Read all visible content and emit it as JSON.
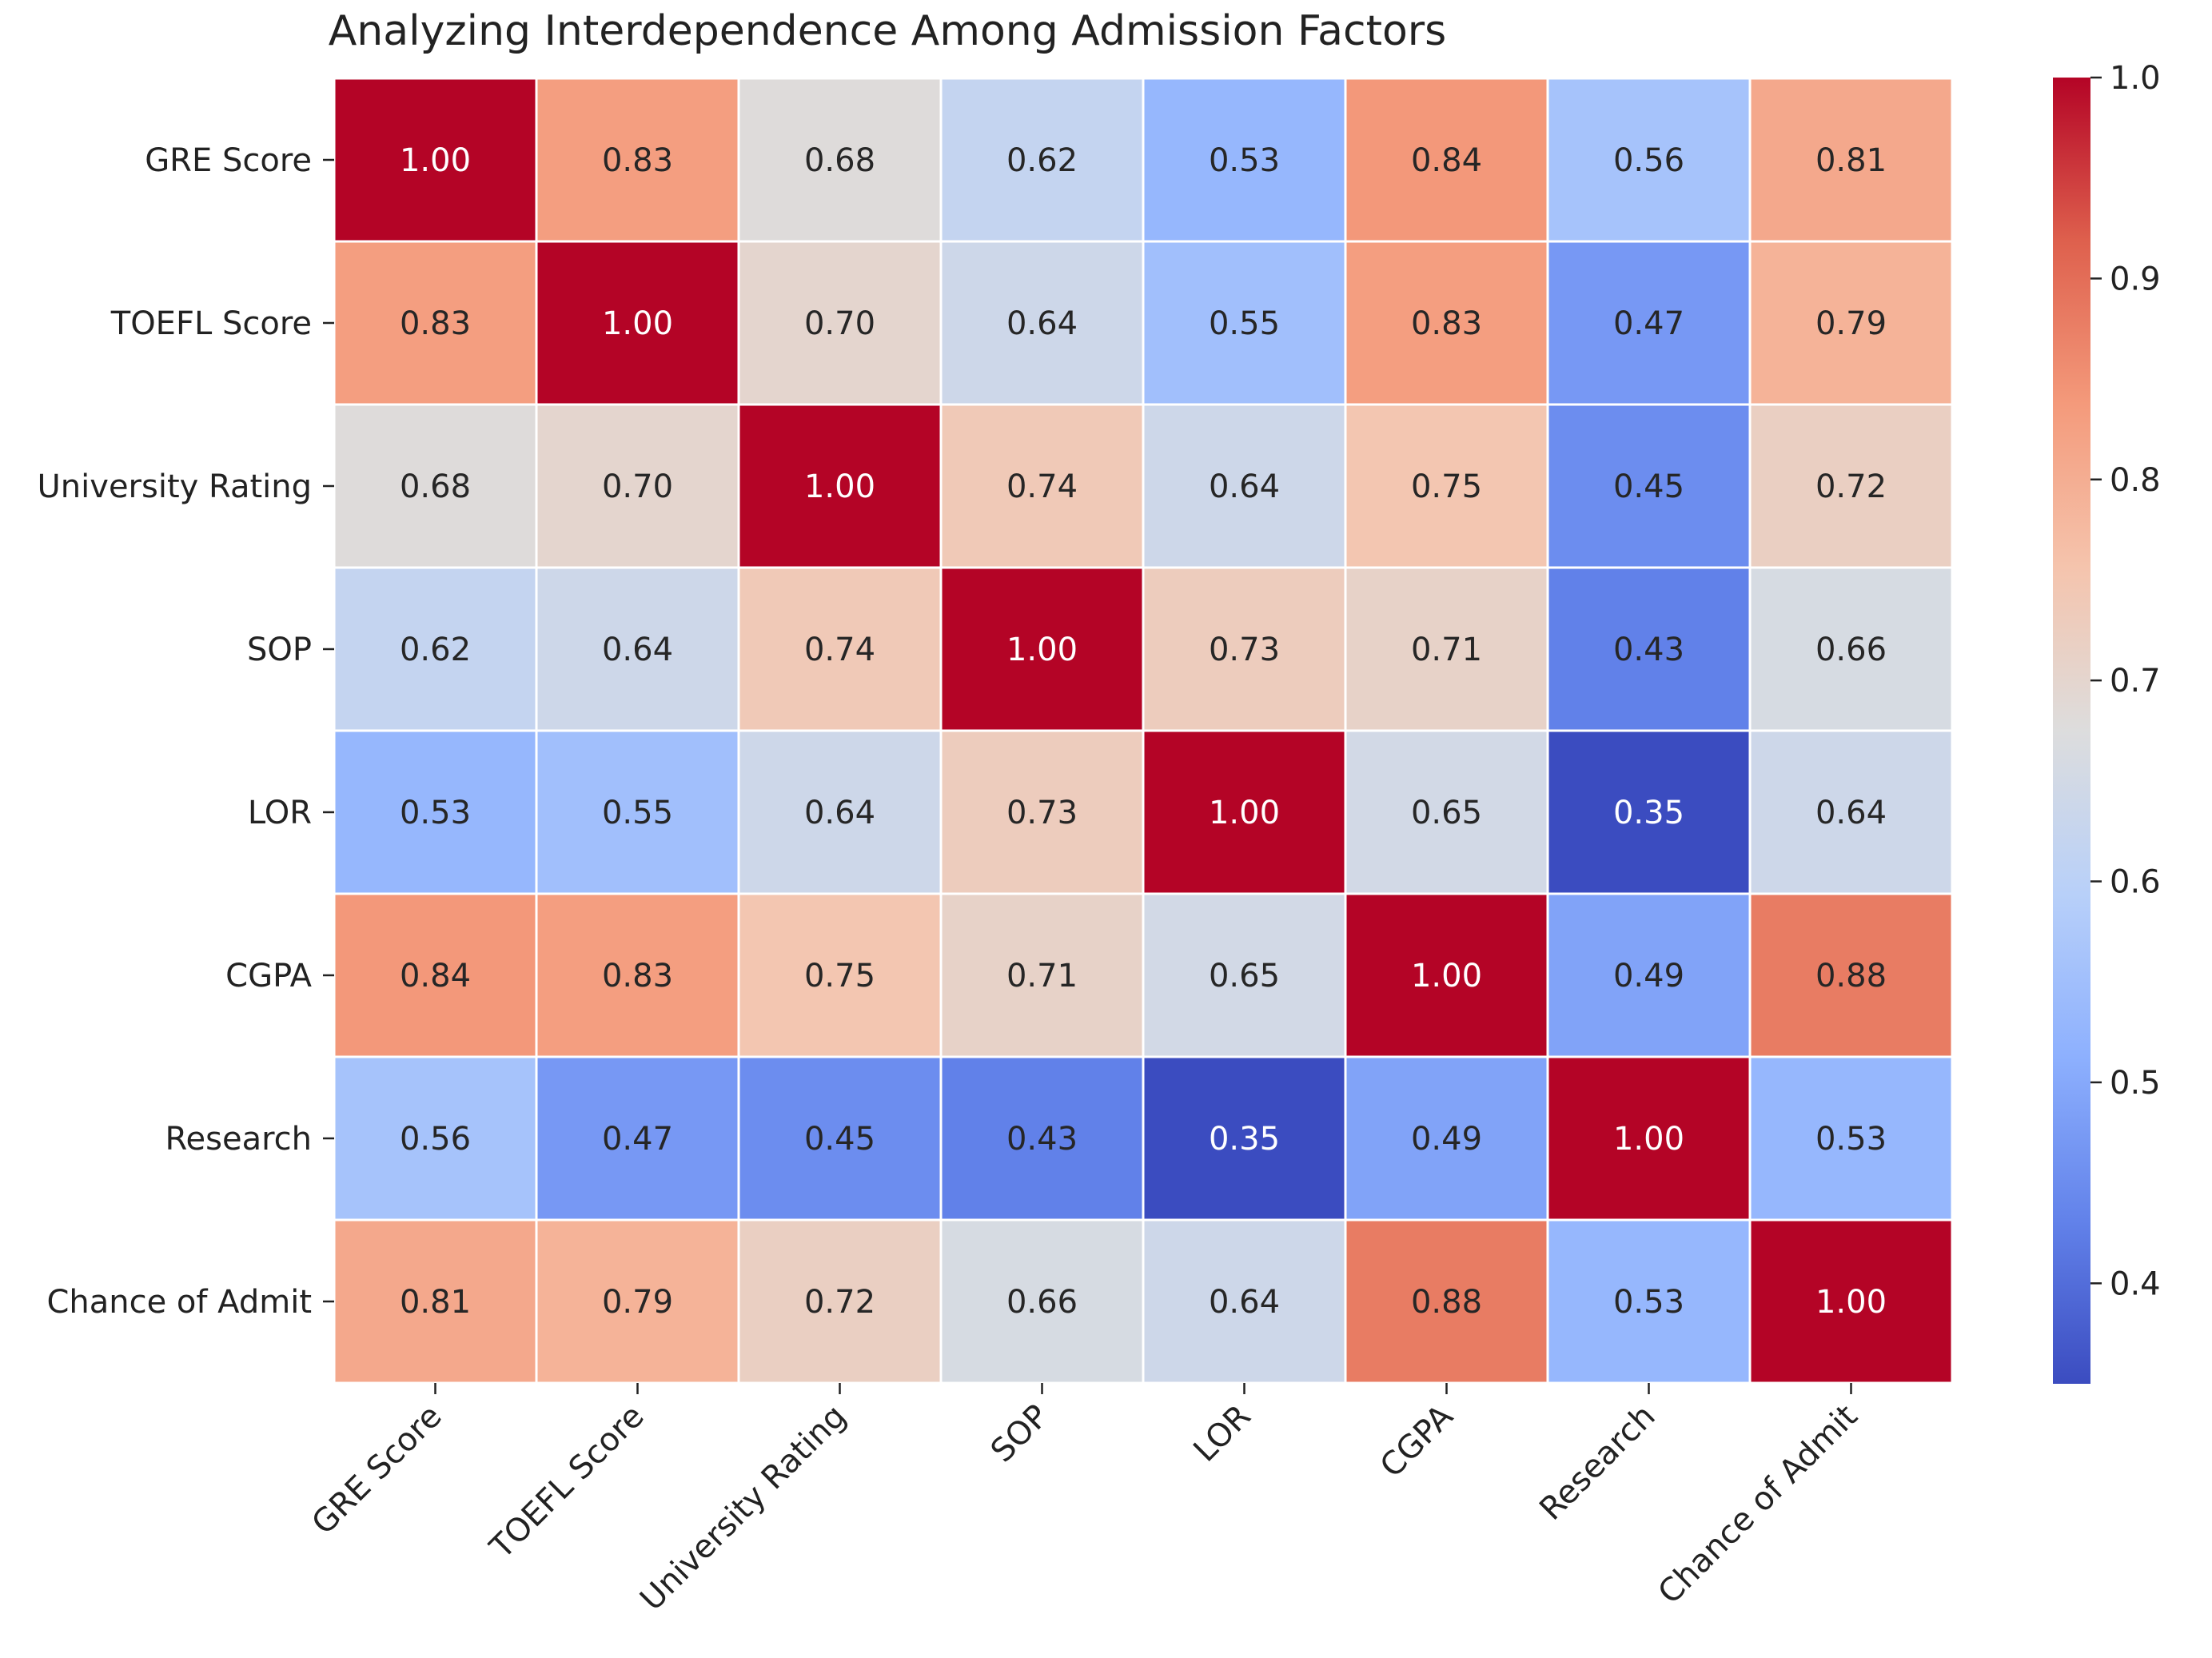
{
  "chart_data": {
    "type": "heatmap",
    "title": "Analyzing Interdependence Among Admission Factors",
    "xlabel": "",
    "ylabel": "",
    "categories": [
      "GRE Score",
      "TOEFL Score",
      "University Rating",
      "SOP",
      "LOR",
      "CGPA",
      "Research",
      "Chance of Admit"
    ],
    "values": [
      [
        1.0,
        0.83,
        0.68,
        0.62,
        0.53,
        0.84,
        0.56,
        0.81
      ],
      [
        0.83,
        1.0,
        0.7,
        0.64,
        0.55,
        0.83,
        0.47,
        0.79
      ],
      [
        0.68,
        0.7,
        1.0,
        0.74,
        0.64,
        0.75,
        0.45,
        0.72
      ],
      [
        0.62,
        0.64,
        0.74,
        1.0,
        0.73,
        0.71,
        0.43,
        0.66
      ],
      [
        0.53,
        0.55,
        0.64,
        0.73,
        1.0,
        0.65,
        0.35,
        0.64
      ],
      [
        0.84,
        0.83,
        0.75,
        0.71,
        0.65,
        1.0,
        0.49,
        0.88
      ],
      [
        0.56,
        0.47,
        0.45,
        0.43,
        0.35,
        0.49,
        1.0,
        0.53
      ],
      [
        0.81,
        0.79,
        0.72,
        0.66,
        0.64,
        0.88,
        0.53,
        1.0
      ]
    ],
    "value_format": "0.00",
    "colormap": "coolwarm",
    "vmin": 0.35,
    "vmax": 1.0,
    "colorbar_ticks": [
      "0.4",
      "0.5",
      "0.6",
      "0.7",
      "0.8",
      "0.9",
      "1.0"
    ],
    "cell_border_color": "#ffffff",
    "x_tick_rotation_deg": 45
  }
}
